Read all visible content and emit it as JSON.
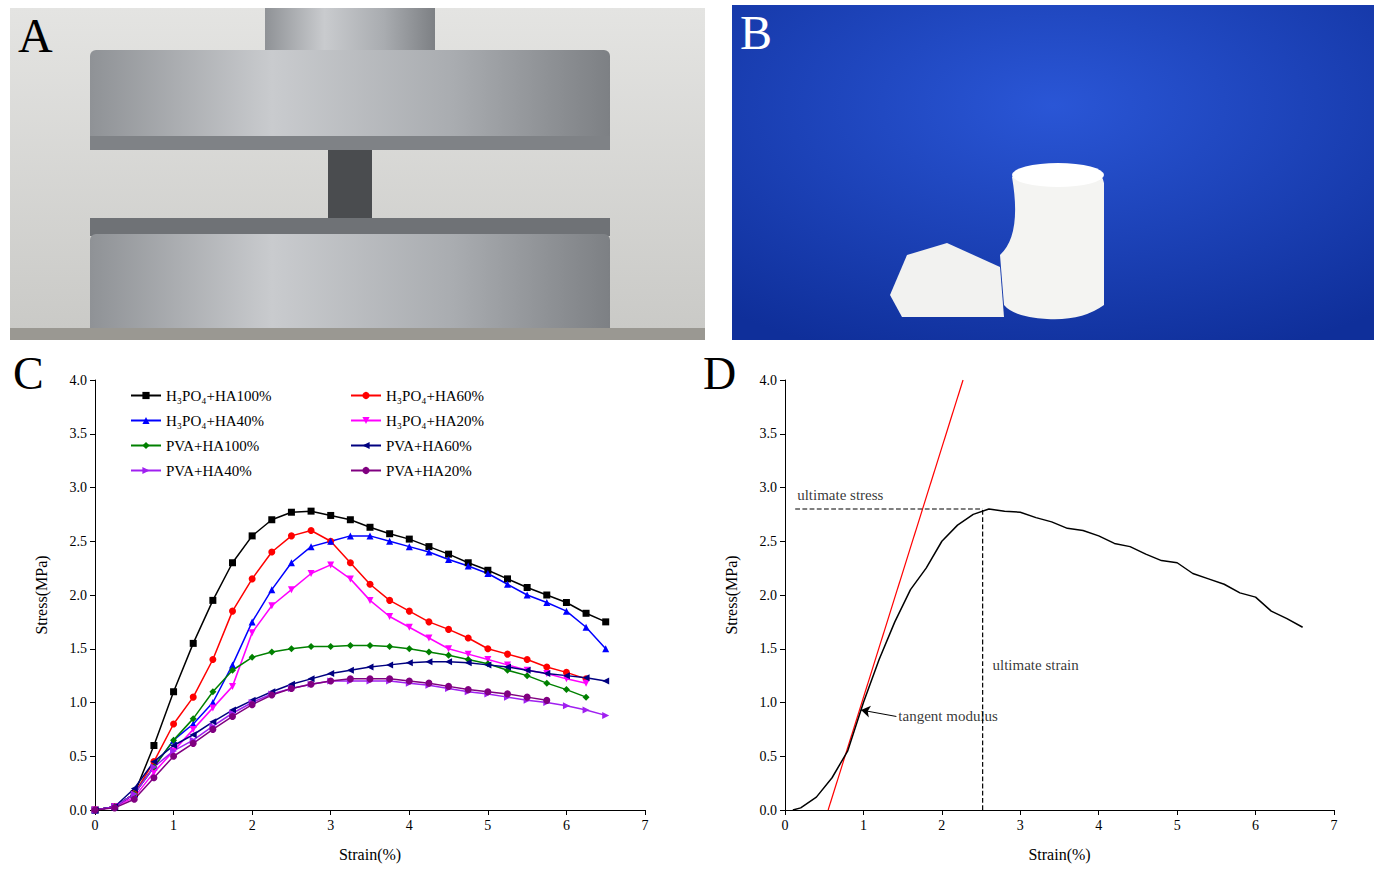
{
  "photos": [
    {
      "label": "A"
    },
    {
      "label": "B"
    }
  ],
  "chart_data": [
    {
      "type": "line",
      "title": "C",
      "x_label": "Strain(%)",
      "y_label": "Stress(MPa)",
      "x": [
        0,
        0.25,
        0.5,
        0.75,
        1,
        1.25,
        1.5,
        1.75,
        2,
        2.25,
        2.5,
        2.75,
        3,
        3.25,
        3.5,
        3.75,
        4,
        4.25,
        4.5,
        4.75,
        5,
        5.25,
        5.5,
        5.75,
        6,
        6.25,
        6.5
      ],
      "series": [
        {
          "name": "H₃PO₄+HA100%",
          "color": "#000000",
          "marker": "square",
          "values": [
            0,
            0.03,
            0.15,
            0.6,
            1.1,
            1.55,
            1.95,
            2.3,
            2.55,
            2.7,
            2.77,
            2.78,
            2.74,
            2.7,
            2.63,
            2.57,
            2.52,
            2.45,
            2.38,
            2.3,
            2.23,
            2.15,
            2.07,
            2.0,
            1.93,
            1.83,
            1.75
          ]
        },
        {
          "name": "H₃PO₄+HA60%",
          "color": "#ff0000",
          "marker": "circle",
          "values": [
            0,
            0.03,
            0.15,
            0.45,
            0.8,
            1.05,
            1.4,
            1.85,
            2.15,
            2.4,
            2.55,
            2.6,
            2.5,
            2.3,
            2.1,
            1.95,
            1.85,
            1.75,
            1.68,
            1.6,
            1.5,
            1.45,
            1.4,
            1.33,
            1.28,
            1.22,
            null
          ]
        },
        {
          "name": "H₃PO₄+HA40%",
          "color": "#0000ff",
          "marker": "triangle",
          "values": [
            0,
            0.03,
            0.15,
            0.4,
            0.65,
            0.8,
            1.0,
            1.35,
            1.75,
            2.05,
            2.3,
            2.45,
            2.5,
            2.55,
            2.55,
            2.5,
            2.45,
            2.4,
            2.33,
            2.27,
            2.2,
            2.1,
            2.0,
            1.93,
            1.85,
            1.7,
            1.5
          ]
        },
        {
          "name": "H₃PO₄+HA20%",
          "color": "#ff00ff",
          "marker": "triangle_down",
          "values": [
            0,
            0.03,
            0.12,
            0.35,
            0.55,
            0.75,
            0.95,
            1.15,
            1.65,
            1.9,
            2.05,
            2.2,
            2.28,
            2.15,
            1.95,
            1.8,
            1.7,
            1.6,
            1.5,
            1.45,
            1.4,
            1.35,
            1.3,
            1.27,
            1.22,
            1.18,
            null
          ]
        },
        {
          "name": "PVA+HA100%",
          "color": "#008000",
          "marker": "diamond",
          "values": [
            0,
            0.03,
            0.15,
            0.4,
            0.65,
            0.85,
            1.1,
            1.3,
            1.42,
            1.47,
            1.5,
            1.52,
            1.52,
            1.53,
            1.53,
            1.52,
            1.5,
            1.47,
            1.44,
            1.4,
            1.36,
            1.3,
            1.25,
            1.18,
            1.12,
            1.05,
            null
          ]
        },
        {
          "name": "PVA+HA60%",
          "color": "#000080",
          "marker": "triangle_left",
          "values": [
            0,
            0.03,
            0.2,
            0.45,
            0.6,
            0.7,
            0.82,
            0.93,
            1.02,
            1.1,
            1.17,
            1.22,
            1.27,
            1.3,
            1.33,
            1.35,
            1.37,
            1.38,
            1.38,
            1.37,
            1.35,
            1.33,
            1.3,
            1.27,
            1.25,
            1.23,
            1.2
          ]
        },
        {
          "name": "PVA+HA40%",
          "color": "#a020f0",
          "marker": "triangle_right",
          "values": [
            0,
            0.03,
            0.15,
            0.4,
            0.55,
            0.65,
            0.78,
            0.9,
            1.0,
            1.08,
            1.13,
            1.17,
            1.2,
            1.2,
            1.2,
            1.2,
            1.18,
            1.16,
            1.13,
            1.1,
            1.08,
            1.05,
            1.02,
            1.0,
            0.97,
            0.93,
            0.88
          ]
        },
        {
          "name": "PVA+HA20%",
          "color": "#800080",
          "marker": "circle",
          "values": [
            0,
            0.02,
            0.1,
            0.3,
            0.5,
            0.62,
            0.75,
            0.87,
            0.98,
            1.07,
            1.13,
            1.17,
            1.2,
            1.22,
            1.22,
            1.22,
            1.2,
            1.18,
            1.15,
            1.12,
            1.1,
            1.08,
            1.05,
            1.02,
            null,
            null,
            null
          ]
        }
      ],
      "xlim": [
        0,
        7
      ],
      "xticks": [
        0,
        1,
        2,
        3,
        4,
        5,
        6,
        7
      ],
      "ylim": [
        0,
        4
      ],
      "yticks": [
        {
          "value": 0,
          "label": "0.0"
        },
        {
          "value": 0.5,
          "label": "0.5"
        },
        {
          "value": 1,
          "label": "1.0"
        },
        {
          "value": 1.5,
          "label": "1.5"
        },
        {
          "value": 2,
          "label": "2.0"
        },
        {
          "value": 2.5,
          "label": "2.5"
        },
        {
          "value": 3,
          "label": "3.0"
        },
        {
          "value": 3.5,
          "label": "3.5"
        },
        {
          "value": 4,
          "label": "4.0"
        }
      ],
      "grid": false,
      "legend": "upper-left"
    },
    {
      "type": "line",
      "title": "D",
      "x_label": "Strain(%)",
      "y_label": "Stress(MPa)",
      "x": [
        0.1,
        0.2,
        0.4,
        0.6,
        0.8,
        1.0,
        1.2,
        1.4,
        1.6,
        1.8,
        2.0,
        2.2,
        2.4,
        2.6,
        2.8,
        3.0,
        3.2,
        3.4,
        3.6,
        3.8,
        4.0,
        4.2,
        4.4,
        4.6,
        4.8,
        5.0,
        5.2,
        5.4,
        5.6,
        5.8,
        6.0,
        6.2,
        6.4,
        6.6
      ],
      "values": [
        0,
        0.02,
        0.12,
        0.3,
        0.55,
        1.0,
        1.4,
        1.75,
        2.05,
        2.25,
        2.5,
        2.65,
        2.75,
        2.8,
        2.78,
        2.77,
        2.72,
        2.68,
        2.62,
        2.6,
        2.55,
        2.48,
        2.45,
        2.38,
        2.32,
        2.3,
        2.2,
        2.15,
        2.1,
        2.02,
        1.98,
        1.85,
        1.78,
        1.7
      ],
      "color": "#000000",
      "lines": [
        {
          "x": [
            0.55,
            2.27
          ],
          "y": [
            0,
            4.0
          ],
          "color": "#ff0000",
          "line_style": "solid"
        },
        {
          "x": [
            0.13,
            2.52
          ],
          "y": [
            2.8,
            2.8
          ],
          "color": "#000000",
          "line_style": "dashed"
        },
        {
          "x": [
            2.52,
            2.52
          ],
          "y": [
            0,
            2.8
          ],
          "color": "#000000",
          "line_style": "dashed"
        }
      ],
      "annotations": [
        {
          "text": "ultimate stress",
          "x": 0.13,
          "y": 2.93
        },
        {
          "text": "ultimate strain",
          "x": 2.62,
          "y": 1.35
        },
        {
          "text": "tangent modulus",
          "x": 1.42,
          "y": 0.87,
          "arrow_to": [
            0.97,
            0.93
          ]
        }
      ],
      "xlim": [
        0,
        7
      ],
      "xticks": [
        0,
        1,
        2,
        3,
        4,
        5,
        6,
        7
      ],
      "ylim": [
        0,
        4
      ],
      "yticks": [
        {
          "value": 0,
          "label": "0.0"
        },
        {
          "value": 0.5,
          "label": "0.5"
        },
        {
          "value": 1,
          "label": "1.0"
        },
        {
          "value": 1.5,
          "label": "1.5"
        },
        {
          "value": 2,
          "label": "2.0"
        },
        {
          "value": 2.5,
          "label": "2.5"
        },
        {
          "value": 3,
          "label": "3.0"
        },
        {
          "value": 3.5,
          "label": "3.5"
        },
        {
          "value": 4,
          "label": "4.0"
        }
      ],
      "grid": false
    }
  ]
}
